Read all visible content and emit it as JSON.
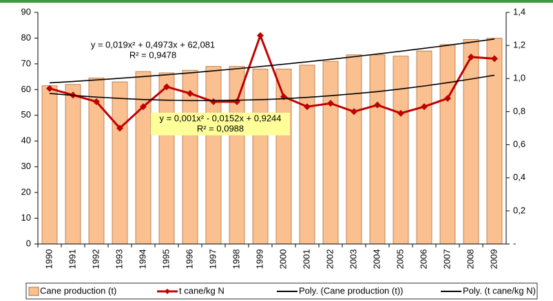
{
  "chart_data": {
    "type": "bar",
    "categories": [
      "1990",
      "1991",
      "1992",
      "1993",
      "1994",
      "1995",
      "1996",
      "1997",
      "1998",
      "1999",
      "2000",
      "2001",
      "2002",
      "2003",
      "2004",
      "2005",
      "2006",
      "2007",
      "2008",
      "2009"
    ],
    "series": [
      {
        "name": "Cane production (t)",
        "type": "bar",
        "color": "#fac090",
        "values": [
          61.5,
          62,
          64.5,
          63,
          67,
          66.5,
          67.5,
          69,
          69,
          68,
          68,
          69.5,
          71,
          73.5,
          73.5,
          73,
          75,
          77.5,
          79.5,
          80
        ]
      },
      {
        "name": "t cane/kg N",
        "type": "line",
        "axis": "y2",
        "color": "#c00000",
        "values": [
          0.94,
          0.9,
          0.86,
          0.7,
          0.83,
          0.95,
          0.91,
          0.86,
          0.86,
          1.26,
          0.89,
          0.83,
          0.85,
          0.8,
          0.84,
          0.79,
          0.83,
          0.88,
          1.13,
          1.12
        ]
      },
      {
        "name": "Poly. (Cane production (t))",
        "type": "trend",
        "color": "#000000",
        "values": [
          62.6,
          63.15,
          63.74,
          64.37,
          65.04,
          65.75,
          66.49,
          67.28,
          68.1,
          68.95,
          69.85,
          70.79,
          71.76,
          72.77,
          73.82,
          74.9,
          76.03,
          77.19,
          78.39,
          79.63
        ]
      },
      {
        "name": "Poly. (t cane/kg N)",
        "type": "trend",
        "axis": "y2",
        "color": "#000000",
        "values": [
          0.91,
          0.898,
          0.888,
          0.88,
          0.873,
          0.869,
          0.867,
          0.867,
          0.869,
          0.872,
          0.878,
          0.886,
          0.896,
          0.908,
          0.921,
          0.937,
          0.955,
          0.975,
          0.997,
          1.02
        ]
      }
    ],
    "annotations": [
      "y = 0,019x² + 0,4973x + 62,081",
      "R² = 0,9478",
      "y = 0,001x² - 0,0152x + 0,9244",
      "R² = 0,0988"
    ],
    "ylim": [
      0,
      90
    ],
    "yticks": [
      0,
      10,
      20,
      30,
      40,
      50,
      60,
      70,
      80,
      90
    ],
    "y2lim": [
      0,
      1.4
    ],
    "y2ticks": [
      {
        "value": 0,
        "label": "-"
      },
      {
        "value": 0.2,
        "label": "0,2"
      },
      {
        "value": 0.4,
        "label": "0,4"
      },
      {
        "value": 0.6,
        "label": "0,6"
      },
      {
        "value": 0.8,
        "label": "0,8"
      },
      {
        "value": 1.0,
        "label": "1,0"
      },
      {
        "value": 1.2,
        "label": "1,2"
      },
      {
        "value": 1.4,
        "label": "1,4"
      }
    ],
    "grid": false,
    "legend": "bottom"
  }
}
